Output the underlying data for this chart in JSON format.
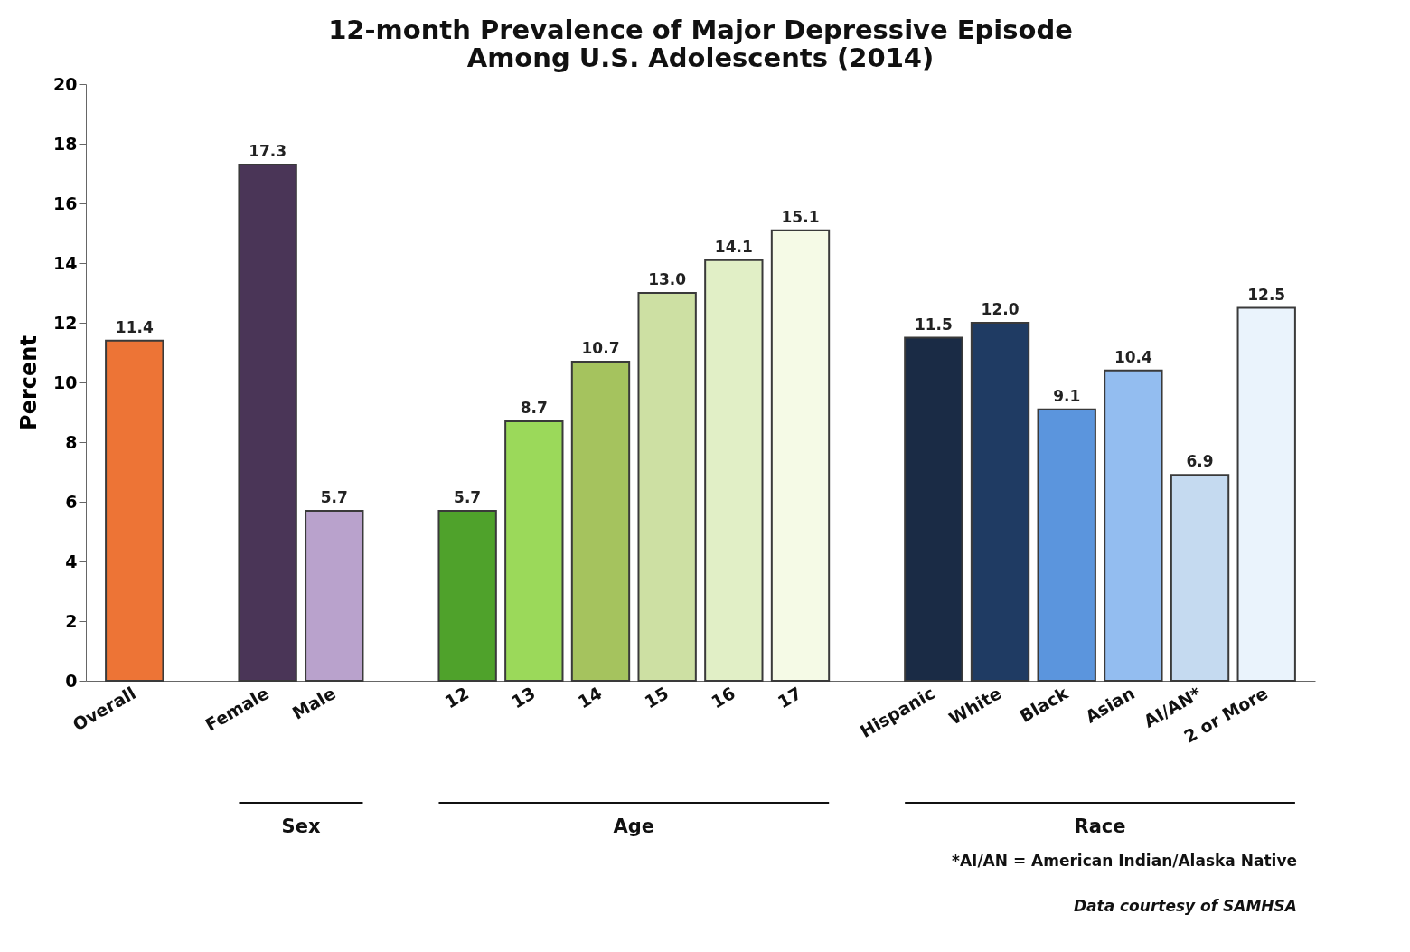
{
  "chart_data": {
    "type": "bar",
    "title": [
      "12-month Prevalence of Major Depressive Episode",
      "Among U.S. Adolescents (2014)"
    ],
    "ylabel": "Percent",
    "categories": [
      "Overall",
      null,
      "Female",
      "Male",
      null,
      "12",
      "13",
      "14",
      "15",
      "16",
      "17",
      null,
      "Hispanic",
      "White",
      "Black",
      "Asian",
      "AI/AN*",
      "2 or More"
    ],
    "values": [
      11.4,
      null,
      17.3,
      5.7,
      null,
      5.7,
      8.7,
      10.7,
      13.0,
      14.1,
      15.1,
      null,
      11.5,
      12.0,
      9.1,
      10.4,
      6.9,
      12.5
    ],
    "colors": [
      "#ed7436",
      null,
      "#4a3557",
      "#b9a2cc",
      null,
      "#4fa22b",
      "#9bd95a",
      "#a5c35e",
      "#cde0a3",
      "#e1efc6",
      "#f5fae6",
      null,
      "#1a2b45",
      "#1f3b63",
      "#5b95dd",
      "#93bdf0",
      "#c5daf0",
      "#eaf3fc"
    ],
    "ylim": [
      0,
      20
    ],
    "yticks": [
      0,
      2,
      4,
      6,
      8,
      10,
      12,
      14,
      16,
      18,
      20
    ],
    "value_labels": [
      "11.4",
      null,
      "17.3",
      "5.7",
      null,
      "5.7",
      "8.7",
      "10.7",
      "13.0",
      "14.1",
      "15.1",
      null,
      "11.5",
      "12.0",
      "9.1",
      "10.4",
      "6.9",
      "12.5"
    ],
    "grid": false,
    "legend": false,
    "annotations": [
      "Sex",
      "Age",
      "Race",
      "*AI/AN = American Indian/Alaska Native",
      "Data courtesy of SAMHSA"
    ]
  }
}
